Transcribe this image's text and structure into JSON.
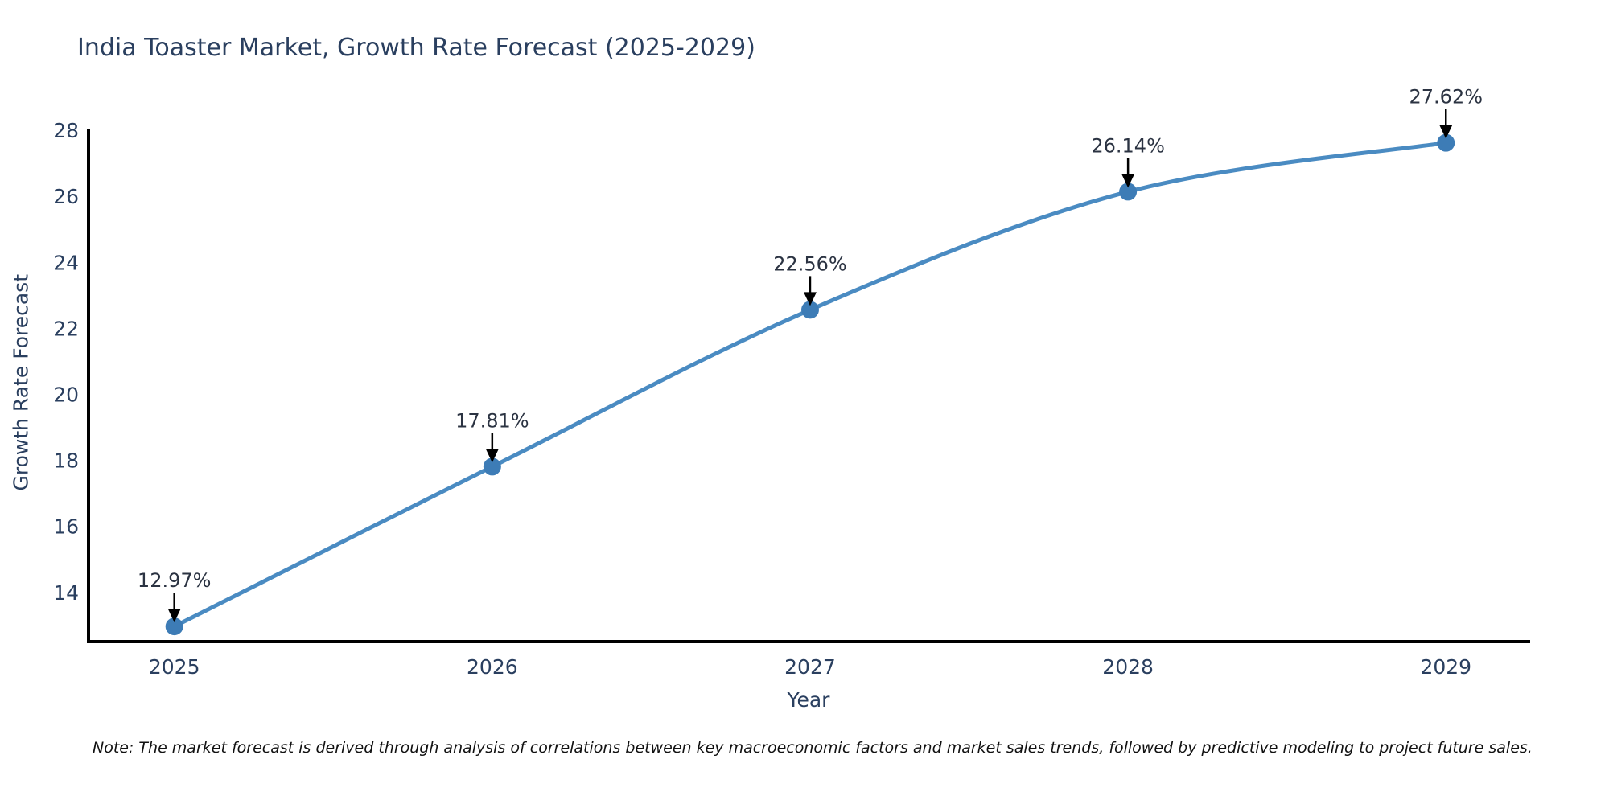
{
  "title": "India Toaster Market, Growth Rate Forecast (2025-2029)",
  "note": "Note: The market forecast is derived through analysis of correlations between key macroeconomic factors and market sales trends, followed by predictive modeling to project future sales.",
  "chart_data": {
    "type": "line",
    "title": "India Toaster Market, Growth Rate Forecast (2025-2029)",
    "xlabel": "Year",
    "ylabel": "Growth Rate Forecast",
    "x": [
      2025,
      2026,
      2027,
      2028,
      2029
    ],
    "values": [
      12.97,
      17.81,
      22.56,
      26.14,
      27.62
    ],
    "point_labels": [
      "12.97%",
      "17.81%",
      "22.56%",
      "26.14%",
      "27.62%"
    ],
    "xticks": [
      "2025",
      "2026",
      "2027",
      "2028",
      "2029"
    ],
    "yticks": [
      14,
      16,
      18,
      20,
      22,
      24,
      26,
      28
    ],
    "xlim": [
      2024.73,
      2029.26
    ],
    "ylim": [
      12.51,
      28.05
    ],
    "grid": false,
    "legend": "none",
    "line_shape": "spline",
    "marker": "circle",
    "annotation_arrows": true,
    "colors": {
      "line": "#4a8bc2",
      "marker": "#3d7cb6",
      "axis": "#000000",
      "tick_text": "#2a3f5f",
      "annotation_text": "#2b3342",
      "arrow": "#000000"
    }
  }
}
